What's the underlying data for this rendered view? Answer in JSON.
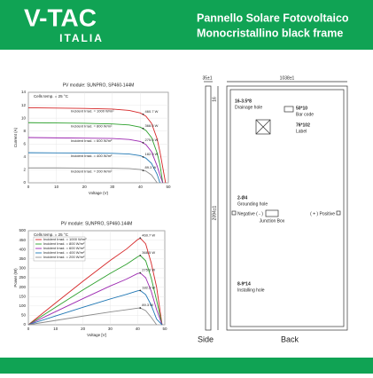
{
  "header": {
    "brand": "V-TAC",
    "sub_brand": "ITALIA",
    "title_line1": "Pannello Solare Fotovoltaico",
    "title_line2": "Monocristallino black frame"
  },
  "chart_data": [
    {
      "type": "line",
      "title": "PV module:   SUNPRO,   SP460-144M",
      "note": "Cells temp. = 25 °C",
      "x_label": "Voltage (V)",
      "y_label": "Current (A)",
      "x": [
        0,
        10,
        20,
        30,
        36,
        40,
        42,
        44,
        46,
        47,
        48,
        49
      ],
      "series": [
        {
          "name": "Incident Irrad. = 1000 W/m²",
          "color": "#d62728",
          "values": [
            11.6,
            11.55,
            11.5,
            11.4,
            11.2,
            10.8,
            10.3,
            9.2,
            6.8,
            4.8,
            2.4,
            0
          ]
        },
        {
          "name": "Incident Irrad. = 800 W/m²",
          "color": "#2ca02c",
          "values": [
            9.3,
            9.25,
            9.2,
            9.1,
            8.95,
            8.6,
            8.1,
            7.0,
            4.6,
            2.8,
            0,
            null
          ]
        },
        {
          "name": "Incident Irrad. = 600 W/m²",
          "color": "#9c27b0",
          "values": [
            7.0,
            6.95,
            6.9,
            6.85,
            6.7,
            6.4,
            5.9,
            4.8,
            2.6,
            1.2,
            0,
            null
          ]
        },
        {
          "name": "Incident Irrad. = 400 W/m²",
          "color": "#1f77b4",
          "values": [
            4.65,
            4.63,
            4.6,
            4.55,
            4.45,
            4.2,
            3.8,
            3.0,
            1.3,
            0,
            null,
            null
          ]
        },
        {
          "name": "Incident Irrad. = 200 W/m²",
          "color": "#8c8c8c",
          "values": [
            2.3,
            2.3,
            2.28,
            2.25,
            2.2,
            2.05,
            1.8,
            1.2,
            0,
            null,
            null,
            null
          ]
        }
      ],
      "annotations": [
        {
          "text": "460.7 W",
          "x": 41,
          "y": 10.6
        },
        {
          "text": "368.5 W",
          "x": 41,
          "y": 8.4
        },
        {
          "text": "275.6 W",
          "x": 41,
          "y": 6.2
        },
        {
          "text": "182.3 W",
          "x": 41,
          "y": 4.0
        },
        {
          "text": "89.3 W",
          "x": 41,
          "y": 1.9
        }
      ],
      "xlim": [
        0,
        50
      ],
      "xticks": [
        0,
        10,
        20,
        30,
        40,
        50
      ],
      "ylim": [
        0,
        14
      ],
      "yticks": [
        0,
        2,
        4,
        6,
        8,
        10,
        12,
        14
      ],
      "grid": true,
      "legend": "inline"
    },
    {
      "type": "line",
      "title": "PV module:   SUNPRO,   SP460-144M",
      "note": "Cells temp. = 25 °C",
      "x_label": "Voltage [V]",
      "y_label": "Power (W)",
      "x": [
        0,
        10,
        20,
        30,
        36,
        40,
        41,
        43,
        45,
        47,
        49
      ],
      "series": [
        {
          "name": "Incident Irrad. = 1000 W/m²",
          "color": "#d62728",
          "values": [
            0,
            116,
            231,
            342,
            403,
            452,
            460.7,
            430,
            330,
            200,
            0
          ]
        },
        {
          "name": "Incident Irrad. = 800 W/m²",
          "color": "#2ca02c",
          "values": [
            0,
            93,
            185,
            273,
            322,
            361,
            368.5,
            340,
            250,
            130,
            0
          ]
        },
        {
          "name": "Incident Irrad. = 600 W/m²",
          "color": "#9c27b0",
          "values": [
            0,
            70,
            139,
            206,
            243,
            272,
            275.6,
            250,
            180,
            80,
            0
          ]
        },
        {
          "name": "Incident Irrad. = 400 W/m²",
          "color": "#1f77b4",
          "values": [
            0,
            47,
            93,
            137,
            162,
            180,
            182.3,
            160,
            105,
            30,
            0
          ]
        },
        {
          "name": "Incident Irrad. = 200 W/m²",
          "color": "#8c8c8c",
          "values": [
            0,
            23,
            46,
            68,
            80,
            88,
            89.3,
            75,
            40,
            0,
            null
          ]
        }
      ],
      "annotations": [
        {
          "text": "460.7 W",
          "x": 41,
          "y": 460.7
        },
        {
          "text": "368.5 W",
          "x": 41,
          "y": 368.5
        },
        {
          "text": "275.6 W",
          "x": 41,
          "y": 275.6
        },
        {
          "text": "182.3 W",
          "x": 41,
          "y": 182.3
        },
        {
          "text": "89.3 W",
          "x": 41,
          "y": 89.3
        }
      ],
      "xlim": [
        0,
        50
      ],
      "xticks": [
        0,
        10,
        20,
        30,
        40,
        50
      ],
      "ylim": [
        0,
        500
      ],
      "yticks": [
        0,
        50,
        100,
        150,
        200,
        250,
        300,
        350,
        400,
        450,
        500
      ],
      "grid": true,
      "legend": "upper left"
    }
  ],
  "drawing": {
    "side_label": "Side",
    "back_label": "Back",
    "depth": "35±1",
    "width": "1038±1",
    "height": "2094±1",
    "edge": "16",
    "drain_code": "16-3.5*8",
    "drain_label": "Drainage hole",
    "barcode_code": "50*10",
    "barcode_label": "Bar code",
    "label_code": "76*102",
    "label_label": "Label",
    "ground_code": "2-Ø4",
    "ground_label": "Grounding hole",
    "negative": "Negative ( - )",
    "junction": "Junction Box",
    "positive": "( + ) Positive",
    "install_code": "8-9*14",
    "install_label": "Installing hole"
  }
}
